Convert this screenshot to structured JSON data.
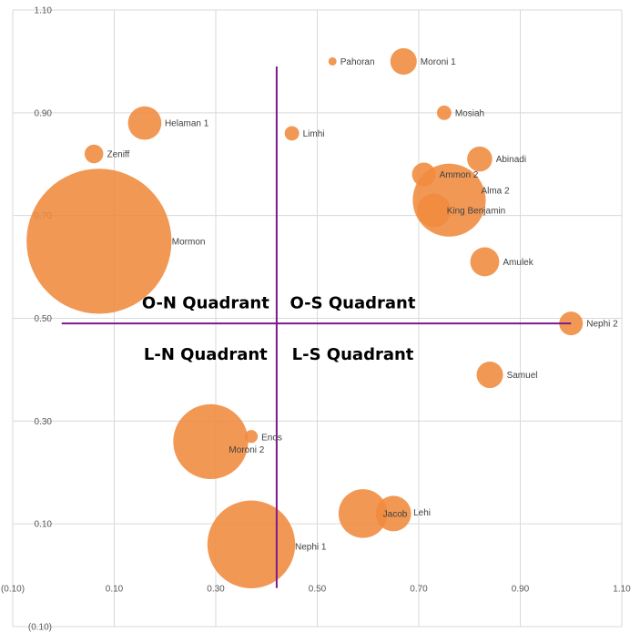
{
  "chart_data": {
    "type": "bubble",
    "xlim": [
      -0.1,
      1.1
    ],
    "ylim": [
      -0.1,
      1.1
    ],
    "x_ticks": [
      "(0.10)",
      "0.10",
      "0.30",
      "0.50",
      "0.70",
      "0.90",
      "1.10"
    ],
    "y_ticks": [
      "(0.10)",
      "0.10",
      "0.30",
      "0.50",
      "0.70",
      "0.90",
      "1.10"
    ],
    "x_tick_values": [
      -0.1,
      0.1,
      0.3,
      0.5,
      0.7,
      0.9,
      1.1
    ],
    "y_tick_values": [
      -0.1,
      0.1,
      0.3,
      0.5,
      0.7,
      0.9,
      1.1
    ],
    "grid": true,
    "bubble_color": "#F08A3E",
    "divider_color": "#7B1A8C",
    "dividers": {
      "x": 0.42,
      "y": 0.49,
      "x_extent": [
        0.0,
        1.0
      ],
      "y_extent": [
        0.0,
        0.99
      ]
    },
    "quadrants": [
      {
        "text": "O-N Quadrant",
        "x": 0.28,
        "y": 0.53
      },
      {
        "text": "O-S Quadrant",
        "x": 0.57,
        "y": 0.53
      },
      {
        "text": "L-N Quadrant",
        "x": 0.28,
        "y": 0.43
      },
      {
        "text": "L-S Quadrant",
        "x": 0.57,
        "y": 0.43
      }
    ],
    "points": [
      {
        "label": "Pahoran",
        "x": 0.53,
        "y": 1.0,
        "size": 0.3
      },
      {
        "label": "Moroni 1",
        "x": 0.67,
        "y": 1.0,
        "size": 5
      },
      {
        "label": "Mosiah",
        "x": 0.75,
        "y": 0.9,
        "size": 1.5
      },
      {
        "label": "Helaman 1",
        "x": 0.16,
        "y": 0.88,
        "size": 8
      },
      {
        "label": "Limhi",
        "x": 0.45,
        "y": 0.86,
        "size": 1.5
      },
      {
        "label": "Zeniff",
        "x": 0.06,
        "y": 0.82,
        "size": 2.5
      },
      {
        "label": "Abinadi",
        "x": 0.82,
        "y": 0.81,
        "size": 4.5
      },
      {
        "label": "Ammon 2",
        "x": 0.71,
        "y": 0.78,
        "size": 4
      },
      {
        "label": "Alma 2",
        "x": 0.76,
        "y": 0.73,
        "size": 38
      },
      {
        "label": "King Benjamin",
        "x": 0.73,
        "y": 0.71,
        "size": 8
      },
      {
        "label": "Mormon",
        "x": 0.07,
        "y": 0.65,
        "size": 150
      },
      {
        "label": "Amulek",
        "x": 0.83,
        "y": 0.61,
        "size": 6
      },
      {
        "label": "Nephi 2",
        "x": 1.0,
        "y": 0.49,
        "size": 4
      },
      {
        "label": "Samuel",
        "x": 0.84,
        "y": 0.39,
        "size": 5
      },
      {
        "label": "Enos",
        "x": 0.37,
        "y": 0.27,
        "size": 1.2
      },
      {
        "label": "Moroni 2",
        "x": 0.29,
        "y": 0.26,
        "size": 40
      },
      {
        "label": "Jacob",
        "x": 0.59,
        "y": 0.12,
        "size": 17
      },
      {
        "label": "Lehi",
        "x": 0.65,
        "y": 0.12,
        "size": 9
      },
      {
        "label": "Nephi 1",
        "x": 0.37,
        "y": 0.06,
        "size": 55
      }
    ]
  }
}
